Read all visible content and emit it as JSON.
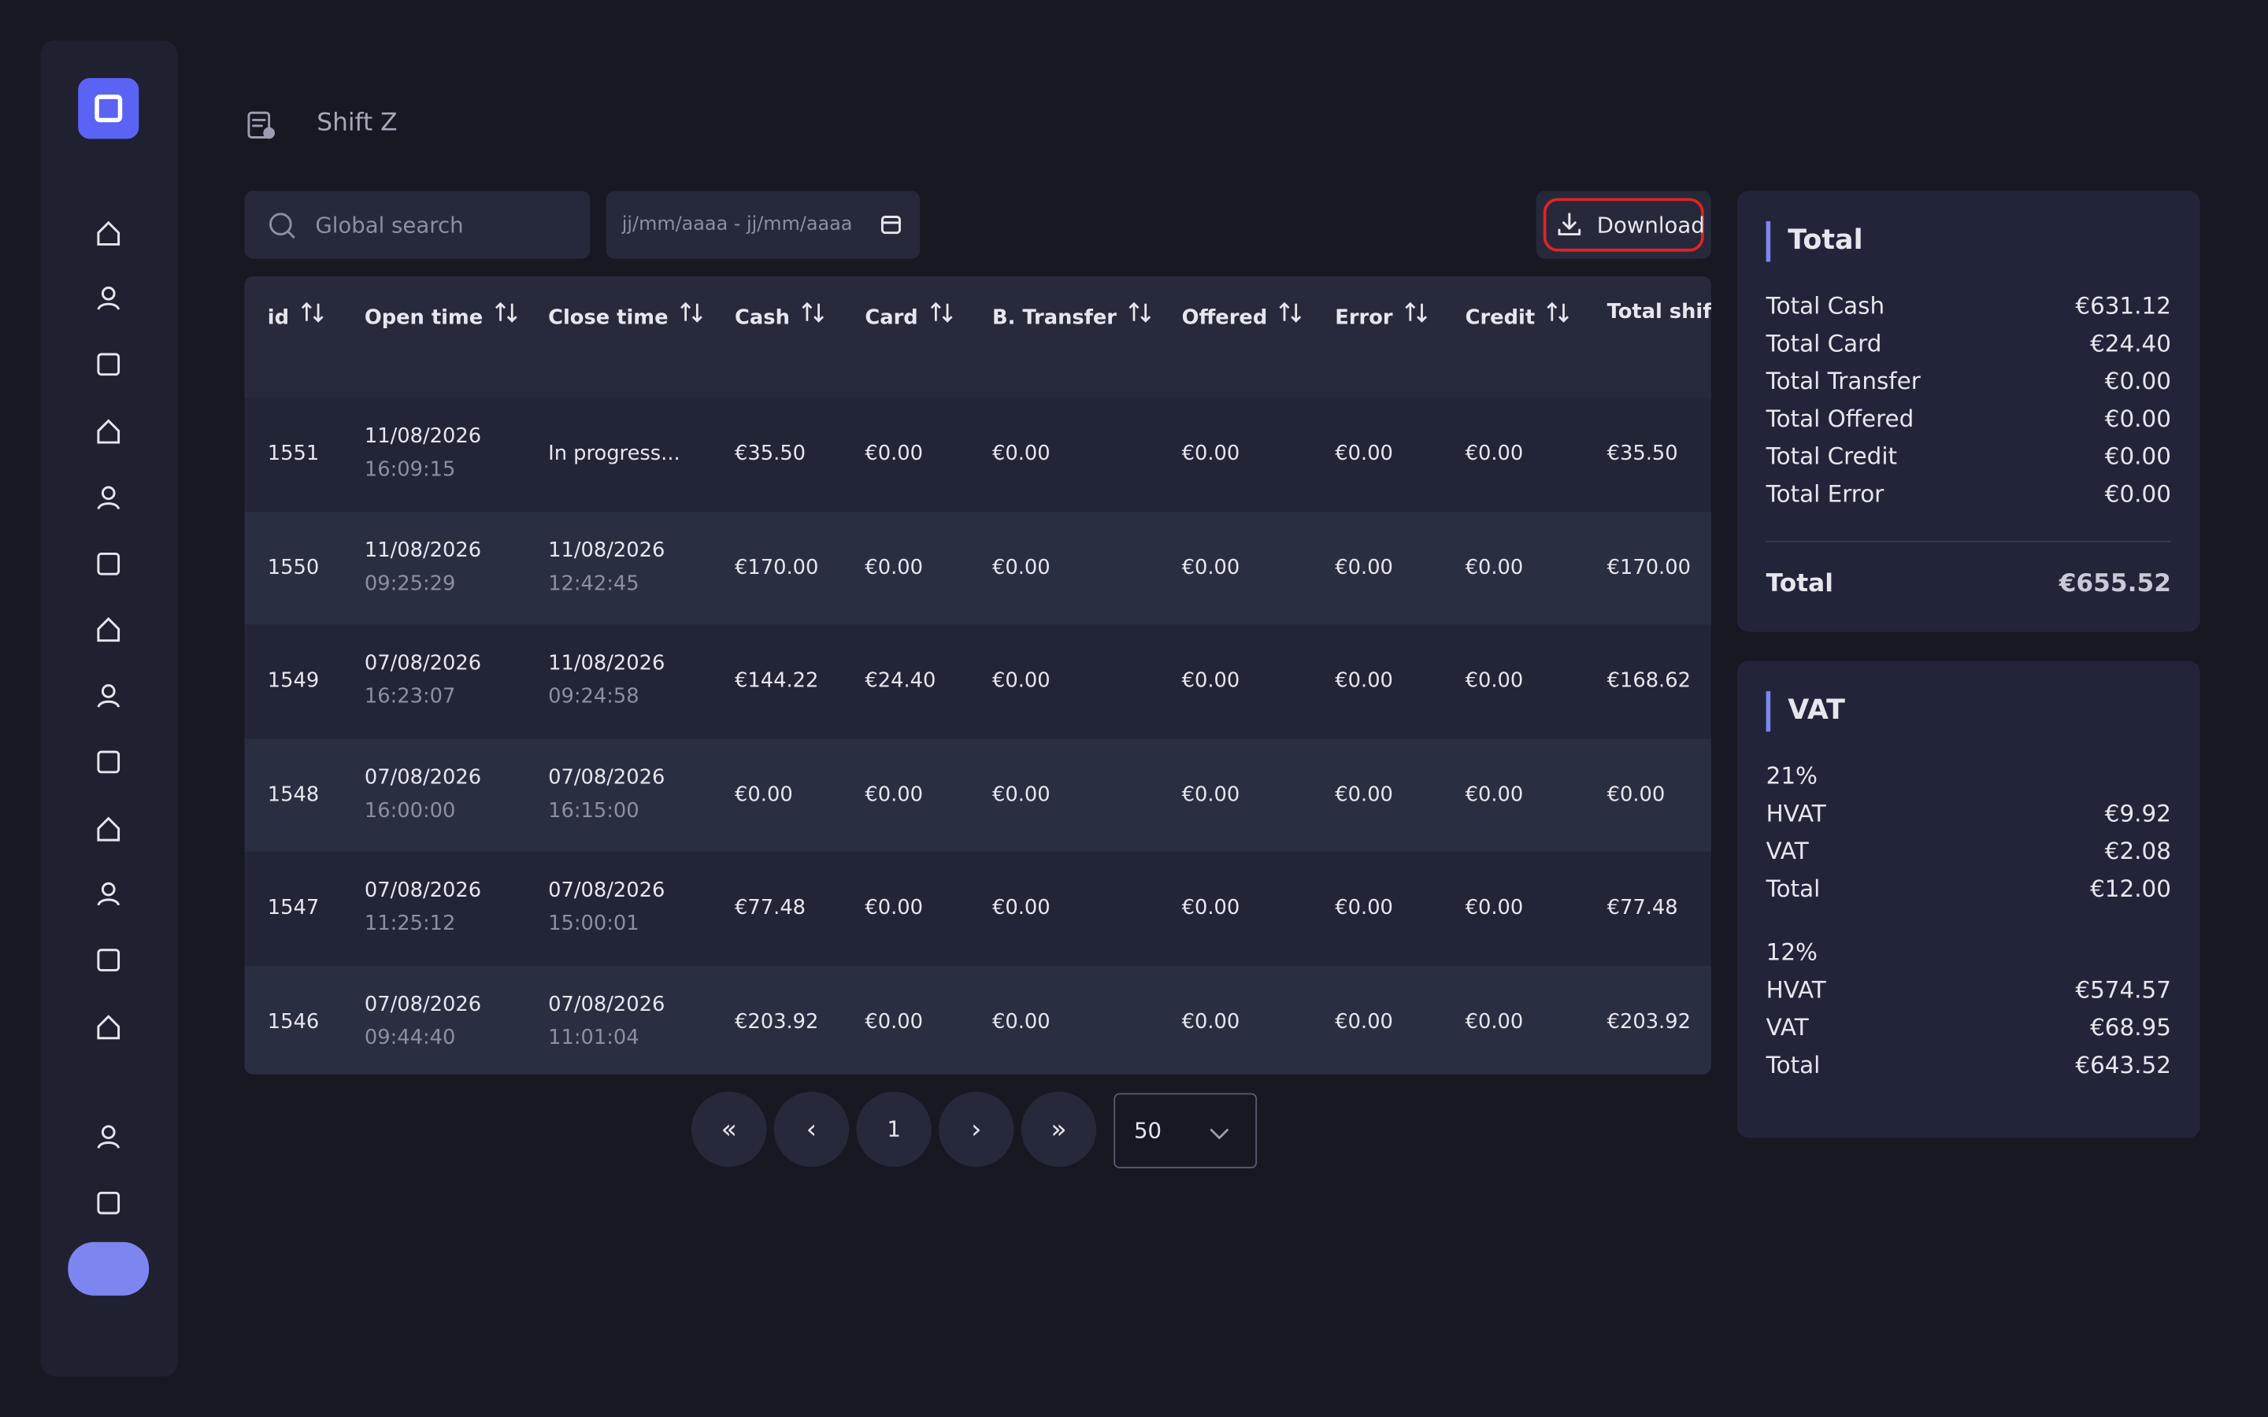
{
  "header": {
    "title": "Shift Z"
  },
  "toolbar": {
    "search": "Global search",
    "date": "jj/mm/aaaa - jj/mm/aaaa",
    "download": "Download"
  },
  "table": {
    "columns": [
      "id",
      "Open time",
      "Close time",
      "Cash",
      "Card",
      "B. Transfer",
      "Offered",
      "Error",
      "Credit",
      "Total shift"
    ],
    "rows": [
      {
        "id": "1551",
        "open": [
          "11/08/2026",
          "16:09:15"
        ],
        "close": [
          "In progress..."
        ],
        "amounts": [
          "€35.50",
          "€0.00",
          "€0.00",
          "€0.00",
          "€0.00",
          "€0.00",
          "€35.50"
        ]
      },
      {
        "id": "1550",
        "open": [
          "11/08/2026",
          "09:25:29"
        ],
        "close": [
          "11/08/2026",
          "12:42:45"
        ],
        "amounts": [
          "€170.00",
          "€0.00",
          "€0.00",
          "€0.00",
          "€0.00",
          "€0.00",
          "€170.00"
        ]
      },
      {
        "id": "1549",
        "open": [
          "07/08/2026",
          "16:23:07"
        ],
        "close": [
          "11/08/2026",
          "09:24:58"
        ],
        "amounts": [
          "€144.22",
          "€24.40",
          "€0.00",
          "€0.00",
          "€0.00",
          "€0.00",
          "€168.62"
        ]
      },
      {
        "id": "1548",
        "open": [
          "07/08/2026",
          "16:00:00"
        ],
        "close": [
          "07/08/2026",
          "16:15:00"
        ],
        "amounts": [
          "€0.00",
          "€0.00",
          "€0.00",
          "€0.00",
          "€0.00",
          "€0.00",
          "€0.00"
        ]
      },
      {
        "id": "1547",
        "open": [
          "07/08/2026",
          "11:25:12"
        ],
        "close": [
          "07/08/2026",
          "15:00:01"
        ],
        "amounts": [
          "€77.48",
          "€0.00",
          "€0.00",
          "€0.00",
          "€0.00",
          "€0.00",
          "€77.48"
        ]
      },
      {
        "id": "1546",
        "open": [
          "07/08/2026",
          "09:44:40"
        ],
        "close": [
          "07/08/2026",
          "11:01:04"
        ],
        "amounts": [
          "€203.92",
          "€0.00",
          "€0.00",
          "€0.00",
          "€0.00",
          "€0.00",
          "€203.92"
        ]
      }
    ]
  },
  "pagination": {
    "page": "1",
    "size": "50"
  },
  "totals": {
    "title": "Total",
    "items": [
      [
        "Total Cash",
        "€631.12"
      ],
      [
        "Total Card",
        "€24.40"
      ],
      [
        "Total Transfer",
        "€0.00"
      ],
      [
        "Total Offered",
        "€0.00"
      ],
      [
        "Total Credit",
        "€0.00"
      ],
      [
        "Total Error",
        "€0.00"
      ]
    ],
    "grand": [
      "Total",
      "€655.52"
    ]
  },
  "vat": {
    "title": "VAT",
    "groups": [
      {
        "rate": "21%",
        "items": [
          [
            "HVAT",
            "€9.92"
          ],
          [
            "VAT",
            "€2.08"
          ],
          [
            "Total",
            "€12.00"
          ]
        ]
      },
      {
        "rate": "12%",
        "items": [
          [
            "HVAT",
            "€574.57"
          ],
          [
            "VAT",
            "€68.95"
          ],
          [
            "Total",
            "€643.52"
          ]
        ]
      }
    ]
  }
}
